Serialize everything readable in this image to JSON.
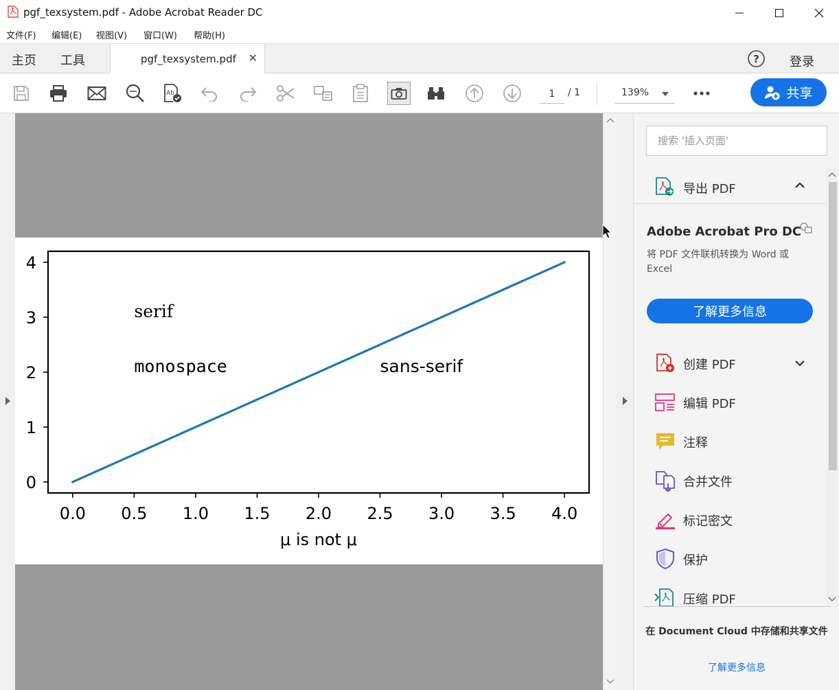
{
  "window": {
    "title": "pgf_texsystem.pdf - Adobe Acrobat Reader DC"
  },
  "menu": [
    "文件(F)",
    "编辑(E)",
    "视图(V)",
    "窗口(W)",
    "帮助(H)"
  ],
  "tabs": {
    "home": "主页",
    "tools": "工具",
    "document": "pgf_texsystem.pdf",
    "signin": "登录"
  },
  "toolbar": {
    "page_current": "1",
    "page_total": "/ 1",
    "zoom": "139%",
    "share": "共享"
  },
  "right_pane": {
    "search_placeholder": "搜索 '插入页面'",
    "export_pdf": "导出 PDF",
    "promo_title": "Adobe Acrobat Pro DC",
    "promo_desc": "将 PDF 文件联机转换为 Word 或 Excel",
    "promo_button": "了解更多信息",
    "tools": [
      "创建 PDF",
      "编辑 PDF",
      "注释",
      "合并文件",
      "标记密文",
      "保护",
      "压缩 PDF"
    ],
    "footer_text": "在 Document Cloud 中存储和共享文件",
    "footer_link": "了解更多信息"
  },
  "chart_data": {
    "type": "line",
    "x": [
      0.0,
      4.0
    ],
    "series": [
      {
        "values": [
          0,
          4
        ],
        "color": "#1f77b4"
      }
    ],
    "xlabel": "μ is not μ",
    "ylabel": "",
    "xlim": [
      -0.2,
      4.2
    ],
    "ylim": [
      -0.2,
      4.2
    ],
    "xticks": [
      "0.0",
      "0.5",
      "1.0",
      "1.5",
      "2.0",
      "2.5",
      "3.0",
      "3.5",
      "4.0"
    ],
    "yticks": [
      "0",
      "1",
      "2",
      "3",
      "4"
    ],
    "annotations": [
      {
        "text": "serif",
        "x": 0.5,
        "y": 3,
        "font": "serif"
      },
      {
        "text": "monospace",
        "x": 0.5,
        "y": 2,
        "font": "monospace"
      },
      {
        "text": "sans-serif",
        "x": 2.5,
        "y": 2,
        "font": "sans-serif"
      }
    ],
    "grid": false
  }
}
